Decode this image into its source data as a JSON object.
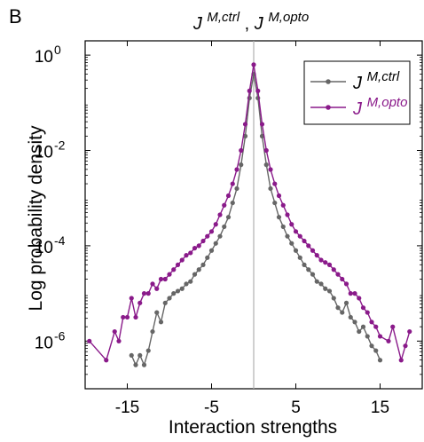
{
  "panel_label": "B",
  "chart_data": {
    "type": "line",
    "title": {
      "base": "J",
      "sup1": "M,ctrl",
      "sep": " , ",
      "base2": "J",
      "sup2": "M,opto"
    },
    "xlabel": "Interaction strengths",
    "ylabel": "Log probability density",
    "xlim": [
      -20,
      20
    ],
    "ylim_log10": [
      -7,
      0.3
    ],
    "y_scale": "log",
    "x_ticks": [
      -15,
      -5,
      5,
      15
    ],
    "x_tick_labels": [
      "-15",
      "-5",
      "5",
      "15"
    ],
    "y_ticks_exponent": [
      0,
      -2,
      -4,
      -6
    ],
    "y_tick_base": "10",
    "y_tick_exponents": [
      "0",
      "-2",
      "-4",
      "-6"
    ],
    "vertical_line_x": 0,
    "legend_position": "top-right",
    "series": [
      {
        "name_base": "J",
        "name_sup": "M,ctrl",
        "color": "#666666",
        "log10_points": [
          [
            -14.5,
            -6.3
          ],
          [
            -14,
            -6.5
          ],
          [
            -13.5,
            -6.3
          ],
          [
            -13,
            -6.5
          ],
          [
            -12.5,
            -6.2
          ],
          [
            -12,
            -5.8
          ],
          [
            -11.5,
            -5.4
          ],
          [
            -11,
            -5.6
          ],
          [
            -10.5,
            -5.2
          ],
          [
            -10,
            -5.1
          ],
          [
            -9.5,
            -5.0
          ],
          [
            -9,
            -4.95
          ],
          [
            -8.5,
            -4.9
          ],
          [
            -8,
            -4.8
          ],
          [
            -7.5,
            -4.75
          ],
          [
            -7,
            -4.6
          ],
          [
            -6.5,
            -4.5
          ],
          [
            -6,
            -4.4
          ],
          [
            -5.5,
            -4.25
          ],
          [
            -5,
            -4.1
          ],
          [
            -4.5,
            -3.95
          ],
          [
            -4,
            -3.8
          ],
          [
            -3.5,
            -3.6
          ],
          [
            -3,
            -3.4
          ],
          [
            -2.5,
            -3.1
          ],
          [
            -2,
            -2.8
          ],
          [
            -1.5,
            -2.3
          ],
          [
            -1,
            -1.7
          ],
          [
            -0.5,
            -0.9
          ],
          [
            0,
            -0.4
          ],
          [
            0.5,
            -0.9
          ],
          [
            1,
            -1.7
          ],
          [
            1.5,
            -2.3
          ],
          [
            2,
            -2.8
          ],
          [
            2.5,
            -3.1
          ],
          [
            3,
            -3.4
          ],
          [
            3.5,
            -3.6
          ],
          [
            4,
            -3.8
          ],
          [
            4.5,
            -3.95
          ],
          [
            5,
            -4.1
          ],
          [
            5.5,
            -4.25
          ],
          [
            6,
            -4.4
          ],
          [
            6.5,
            -4.5
          ],
          [
            7,
            -4.6
          ],
          [
            7.5,
            -4.75
          ],
          [
            8,
            -4.8
          ],
          [
            8.5,
            -4.9
          ],
          [
            9,
            -4.95
          ],
          [
            9.5,
            -5.1
          ],
          [
            10,
            -5.3
          ],
          [
            10.5,
            -5.4
          ],
          [
            11,
            -5.2
          ],
          [
            11.5,
            -5.5
          ],
          [
            12,
            -5.6
          ],
          [
            12.5,
            -5.8
          ],
          [
            13,
            -5.7
          ],
          [
            13.5,
            -5.9
          ],
          [
            14,
            -6.1
          ],
          [
            14.5,
            -6.2
          ],
          [
            15,
            -6.4
          ]
        ]
      },
      {
        "name_base": "J",
        "name_sup": "M,opto",
        "color": "#8a1a8a",
        "log10_points": [
          [
            -19.5,
            -6.0
          ],
          [
            -17.5,
            -6.4
          ],
          [
            -16.5,
            -5.8
          ],
          [
            -16,
            -6.0
          ],
          [
            -15.5,
            -5.5
          ],
          [
            -15,
            -5.5
          ],
          [
            -14.5,
            -5.1
          ],
          [
            -14,
            -5.5
          ],
          [
            -13.5,
            -5.2
          ],
          [
            -13,
            -5.0
          ],
          [
            -12.5,
            -5.0
          ],
          [
            -12,
            -4.8
          ],
          [
            -11.5,
            -4.9
          ],
          [
            -11,
            -4.7
          ],
          [
            -10.5,
            -4.7
          ],
          [
            -10,
            -4.6
          ],
          [
            -9.5,
            -4.5
          ],
          [
            -9,
            -4.4
          ],
          [
            -8.5,
            -4.3
          ],
          [
            -8,
            -4.2
          ],
          [
            -7.5,
            -4.15
          ],
          [
            -7,
            -4.05
          ],
          [
            -6.5,
            -4.0
          ],
          [
            -6,
            -3.9
          ],
          [
            -5.5,
            -3.8
          ],
          [
            -5,
            -3.7
          ],
          [
            -4.5,
            -3.55
          ],
          [
            -4,
            -3.35
          ],
          [
            -3.5,
            -3.15
          ],
          [
            -3,
            -2.95
          ],
          [
            -2.5,
            -2.7
          ],
          [
            -2,
            -2.4
          ],
          [
            -1.5,
            -2.0
          ],
          [
            -1,
            -1.45
          ],
          [
            -0.5,
            -0.75
          ],
          [
            0,
            -0.2
          ],
          [
            0.5,
            -0.75
          ],
          [
            1,
            -1.45
          ],
          [
            1.5,
            -2.0
          ],
          [
            2,
            -2.4
          ],
          [
            2.5,
            -2.7
          ],
          [
            3,
            -2.95
          ],
          [
            3.5,
            -3.15
          ],
          [
            4,
            -3.35
          ],
          [
            4.5,
            -3.55
          ],
          [
            5,
            -3.7
          ],
          [
            5.5,
            -3.8
          ],
          [
            6,
            -3.9
          ],
          [
            6.5,
            -4.0
          ],
          [
            7,
            -4.1
          ],
          [
            7.5,
            -4.2
          ],
          [
            8,
            -4.3
          ],
          [
            8.5,
            -4.35
          ],
          [
            9,
            -4.4
          ],
          [
            9.5,
            -4.5
          ],
          [
            10,
            -4.6
          ],
          [
            10.5,
            -4.7
          ],
          [
            11,
            -4.8
          ],
          [
            11.5,
            -5.0
          ],
          [
            12,
            -5.0
          ],
          [
            12.5,
            -5.1
          ],
          [
            13,
            -5.3
          ],
          [
            13.5,
            -5.4
          ],
          [
            14,
            -5.6
          ],
          [
            14.5,
            -5.7
          ],
          [
            15,
            -5.9
          ],
          [
            16,
            -6.0
          ],
          [
            16.5,
            -5.7
          ],
          [
            17.5,
            -6.4
          ],
          [
            18,
            -6.1
          ],
          [
            18.5,
            -5.8
          ]
        ]
      }
    ]
  }
}
